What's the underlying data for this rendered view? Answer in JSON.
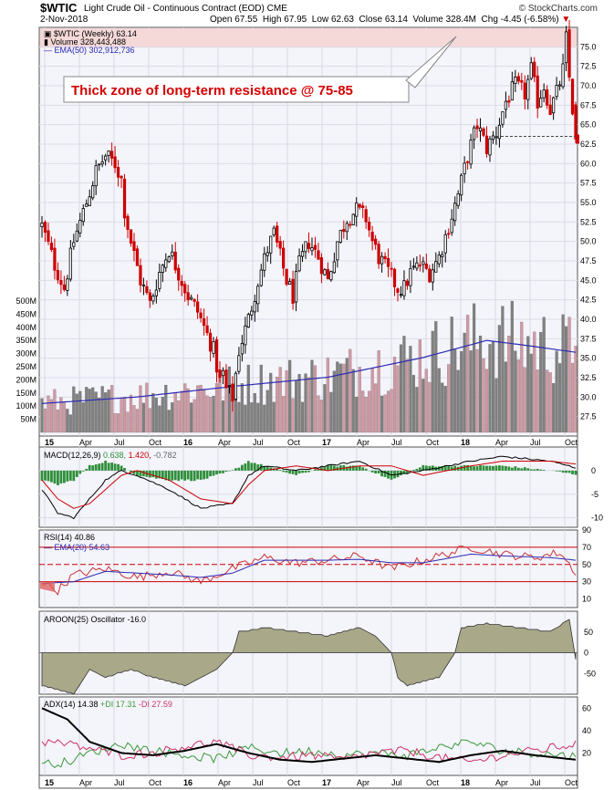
{
  "header": {
    "symbol": "$WTIC",
    "name": "Light Crude Oil - Continuous Contract (EOD)",
    "exchange": "CME",
    "date": "2-Nov-2018",
    "open_label": "Open",
    "open": "67.55",
    "high_label": "High",
    "high": "67.95",
    "low_label": "Low",
    "low": "62.63",
    "close_label": "Close",
    "close": "63.14",
    "volume_label": "Volume",
    "volume": "328.4M",
    "chg_label": "Chg",
    "chg": "-4.45 (-6.58%)",
    "copyright": "© StockCharts.com"
  },
  "legend": {
    "price": "$WTIC (Weekly) 63.14",
    "volume": "Volume 328,443,488",
    "ema50": "EMA(50) 302,912,736"
  },
  "annotation": "Thick zone of long-term resistance @ 75-85",
  "x_labels": [
    "15",
    "Apr",
    "Jul",
    "Oct",
    "16",
    "Apr",
    "Jul",
    "Oct",
    "17",
    "Apr",
    "Jul",
    "Oct",
    "18",
    "Apr",
    "Jul",
    "Oct"
  ],
  "colors": {
    "up": "#000000",
    "down": "#cc0000",
    "vol_up": "#808080",
    "vol_down": "#d19aa4",
    "ema": "#2a2ab5",
    "resist_zone": "#f5d8d8",
    "annot": "#d40000"
  },
  "chart_data": [
    {
      "type": "candlestick",
      "title": "$WTIC (Weekly) 63.14",
      "ylim": [
        25,
        77.5
      ],
      "y_ticks": [
        "75.0",
        "72.5",
        "70.0",
        "67.5",
        "65.0",
        "62.5",
        "60.0",
        "57.5",
        "55.0",
        "52.5",
        "50.0",
        "47.5",
        "45.0",
        "42.5",
        "40.0",
        "37.5",
        "35.0",
        "32.5",
        "30.0",
        "27.5"
      ],
      "resistance_zone": [
        75,
        85
      ],
      "support_line": 63.5,
      "anchors_week_price": [
        [
          0,
          52
        ],
        [
          4,
          47
        ],
        [
          7,
          44
        ],
        [
          10,
          50
        ],
        [
          14,
          55
        ],
        [
          17,
          59
        ],
        [
          20,
          61
        ],
        [
          23,
          60
        ],
        [
          25,
          58
        ],
        [
          26,
          54
        ],
        [
          28,
          50
        ],
        [
          31,
          45
        ],
        [
          34,
          42
        ],
        [
          37,
          46
        ],
        [
          40,
          49
        ],
        [
          43,
          46
        ],
        [
          46,
          43
        ],
        [
          49,
          41
        ],
        [
          52,
          38
        ],
        [
          54,
          36
        ],
        [
          56,
          32
        ],
        [
          57,
          33
        ],
        [
          58,
          31
        ],
        [
          60,
          30
        ],
        [
          61,
          33
        ],
        [
          62,
          36
        ],
        [
          65,
          40
        ],
        [
          68,
          45
        ],
        [
          71,
          49
        ],
        [
          73,
          51
        ],
        [
          75,
          48
        ],
        [
          77,
          45
        ],
        [
          79,
          43
        ],
        [
          81,
          47
        ],
        [
          84,
          50
        ],
        [
          87,
          48
        ],
        [
          90,
          45
        ],
        [
          93,
          50
        ],
        [
          96,
          53
        ],
        [
          99,
          54
        ],
        [
          102,
          53
        ],
        [
          104,
          50
        ],
        [
          106,
          48
        ],
        [
          109,
          46
        ],
        [
          112,
          44
        ],
        [
          114,
          44
        ],
        [
          116,
          46
        ],
        [
          119,
          47
        ],
        [
          122,
          46
        ],
        [
          125,
          48
        ],
        [
          128,
          52
        ],
        [
          131,
          56
        ],
        [
          134,
          61
        ],
        [
          137,
          65
        ],
        [
          140,
          62
        ],
        [
          143,
          64
        ],
        [
          146,
          68
        ],
        [
          149,
          70
        ],
        [
          152,
          69
        ],
        [
          154,
          72
        ],
        [
          156,
          68
        ],
        [
          158,
          70
        ],
        [
          160,
          67
        ],
        [
          162,
          69
        ],
        [
          164,
          72
        ],
        [
          165,
          76
        ],
        [
          166,
          71
        ],
        [
          167,
          67
        ],
        [
          168,
          63
        ]
      ]
    },
    {
      "type": "bar",
      "title": "Volume 328,443,488",
      "ylim": [
        0,
        500
      ],
      "y_ticks": [
        "500M",
        "450M",
        "400M",
        "350M",
        "300M",
        "250M",
        "200M",
        "150M",
        "100M",
        "50M"
      ],
      "ema50_anchors": [
        [
          0,
          110
        ],
        [
          30,
          135
        ],
        [
          60,
          175
        ],
        [
          90,
          210
        ],
        [
          120,
          285
        ],
        [
          140,
          350
        ],
        [
          150,
          335
        ],
        [
          168,
          305
        ]
      ]
    },
    {
      "type": "line",
      "title": "MACD(12,26,9) 0.638, 1.420, -0.782",
      "macd_label": "MACD(12,26,9)",
      "macd": "0.638",
      "signal": "1.420",
      "hist": "-0.782",
      "ylim": [
        -12,
        5
      ],
      "y_ticks": [
        "0",
        "-5",
        "-10"
      ],
      "macd_anchors": [
        [
          0,
          -4
        ],
        [
          5,
          -9
        ],
        [
          10,
          -10
        ],
        [
          15,
          -6
        ],
        [
          20,
          -2
        ],
        [
          25,
          0
        ],
        [
          30,
          -1
        ],
        [
          40,
          -4
        ],
        [
          50,
          -8
        ],
        [
          60,
          -7
        ],
        [
          65,
          -1
        ],
        [
          70,
          1
        ],
        [
          80,
          0
        ],
        [
          90,
          1
        ],
        [
          100,
          2
        ],
        [
          110,
          -1
        ],
        [
          120,
          0
        ],
        [
          135,
          2
        ],
        [
          145,
          3
        ],
        [
          160,
          2
        ],
        [
          168,
          0.6
        ]
      ],
      "signal_anchors": [
        [
          0,
          -2
        ],
        [
          5,
          -6
        ],
        [
          10,
          -8
        ],
        [
          15,
          -7
        ],
        [
          20,
          -4
        ],
        [
          25,
          -1
        ],
        [
          30,
          0
        ],
        [
          40,
          -2
        ],
        [
          50,
          -6
        ],
        [
          60,
          -7
        ],
        [
          65,
          -3
        ],
        [
          70,
          0
        ],
        [
          80,
          1
        ],
        [
          90,
          0
        ],
        [
          100,
          1
        ],
        [
          110,
          1
        ],
        [
          120,
          -1
        ],
        [
          135,
          1
        ],
        [
          145,
          2
        ],
        [
          160,
          2
        ],
        [
          168,
          1.4
        ]
      ]
    },
    {
      "type": "line",
      "title": "RSI(14) 40.86",
      "rsi_label": "RSI(14)",
      "rsi": "40.86",
      "ema_label": "EMA(20)",
      "ema": "54.63",
      "ylim": [
        0,
        90
      ],
      "y_ticks": [
        "90",
        "70",
        "50",
        "30",
        "10"
      ],
      "rsi_anchors": [
        [
          0,
          30
        ],
        [
          5,
          20
        ],
        [
          10,
          38
        ],
        [
          20,
          45
        ],
        [
          30,
          35
        ],
        [
          40,
          42
        ],
        [
          50,
          30
        ],
        [
          60,
          45
        ],
        [
          70,
          58
        ],
        [
          80,
          52
        ],
        [
          90,
          55
        ],
        [
          100,
          60
        ],
        [
          110,
          45
        ],
        [
          120,
          55
        ],
        [
          135,
          70
        ],
        [
          145,
          62
        ],
        [
          155,
          58
        ],
        [
          163,
          64
        ],
        [
          168,
          41
        ]
      ],
      "ema_anchors": [
        [
          0,
          28
        ],
        [
          10,
          30
        ],
        [
          20,
          42
        ],
        [
          30,
          40
        ],
        [
          40,
          38
        ],
        [
          50,
          35
        ],
        [
          60,
          40
        ],
        [
          70,
          55
        ],
        [
          80,
          55
        ],
        [
          90,
          55
        ],
        [
          100,
          56
        ],
        [
          110,
          52
        ],
        [
          120,
          52
        ],
        [
          135,
          62
        ],
        [
          145,
          60
        ],
        [
          160,
          58
        ],
        [
          168,
          55
        ]
      ]
    },
    {
      "type": "area",
      "title": "AROON(25) Oscillator -16.0",
      "label": "AROON(25)",
      "label2": "Oscillator",
      "value": "-16.0",
      "ylim": [
        -100,
        100
      ],
      "y_ticks": [
        "50",
        "0",
        "-50"
      ],
      "anchors": [
        [
          0,
          -80
        ],
        [
          10,
          -100
        ],
        [
          15,
          -40
        ],
        [
          20,
          -60
        ],
        [
          28,
          -40
        ],
        [
          35,
          -60
        ],
        [
          45,
          -80
        ],
        [
          55,
          -40
        ],
        [
          60,
          0
        ],
        [
          62,
          50
        ],
        [
          70,
          60
        ],
        [
          80,
          50
        ],
        [
          90,
          40
        ],
        [
          100,
          60
        ],
        [
          105,
          40
        ],
        [
          110,
          0
        ],
        [
          112,
          -60
        ],
        [
          115,
          -80
        ],
        [
          125,
          -60
        ],
        [
          130,
          0
        ],
        [
          132,
          60
        ],
        [
          140,
          70
        ],
        [
          150,
          60
        ],
        [
          160,
          50
        ],
        [
          166,
          80
        ],
        [
          168,
          -16
        ]
      ]
    },
    {
      "type": "line",
      "title": "ADX(14) 14.38 +DI 17.31 -DI 27.59",
      "adx_label": "ADX(14)",
      "adx": "14.38",
      "pdi_label": "+DI",
      "pdi": "17.31",
      "mdi_label": "-DI",
      "mdi": "27.59",
      "ylim": [
        0,
        70
      ],
      "y_ticks": [
        "60",
        "40",
        "20"
      ],
      "adx_anchors": [
        [
          0,
          60
        ],
        [
          8,
          50
        ],
        [
          15,
          30
        ],
        [
          25,
          20
        ],
        [
          35,
          18
        ],
        [
          45,
          22
        ],
        [
          55,
          28
        ],
        [
          65,
          20
        ],
        [
          75,
          14
        ],
        [
          85,
          12
        ],
        [
          95,
          15
        ],
        [
          105,
          18
        ],
        [
          115,
          15
        ],
        [
          125,
          12
        ],
        [
          135,
          18
        ],
        [
          145,
          22
        ],
        [
          155,
          18
        ],
        [
          168,
          14
        ]
      ],
      "pdi_anchors": [
        [
          0,
          10
        ],
        [
          8,
          12
        ],
        [
          15,
          20
        ],
        [
          25,
          28
        ],
        [
          35,
          22
        ],
        [
          45,
          18
        ],
        [
          55,
          15
        ],
        [
          65,
          25
        ],
        [
          75,
          20
        ],
        [
          85,
          22
        ],
        [
          95,
          18
        ],
        [
          105,
          20
        ],
        [
          115,
          18
        ],
        [
          125,
          25
        ],
        [
          135,
          30
        ],
        [
          145,
          22
        ],
        [
          155,
          20
        ],
        [
          168,
          17
        ]
      ],
      "mdi_anchors": [
        [
          0,
          30
        ],
        [
          8,
          28
        ],
        [
          15,
          24
        ],
        [
          25,
          18
        ],
        [
          35,
          20
        ],
        [
          45,
          26
        ],
        [
          55,
          30
        ],
        [
          65,
          18
        ],
        [
          75,
          16
        ],
        [
          85,
          18
        ],
        [
          95,
          14
        ],
        [
          105,
          20
        ],
        [
          115,
          22
        ],
        [
          125,
          16
        ],
        [
          135,
          12
        ],
        [
          145,
          18
        ],
        [
          155,
          22
        ],
        [
          168,
          28
        ]
      ]
    }
  ]
}
